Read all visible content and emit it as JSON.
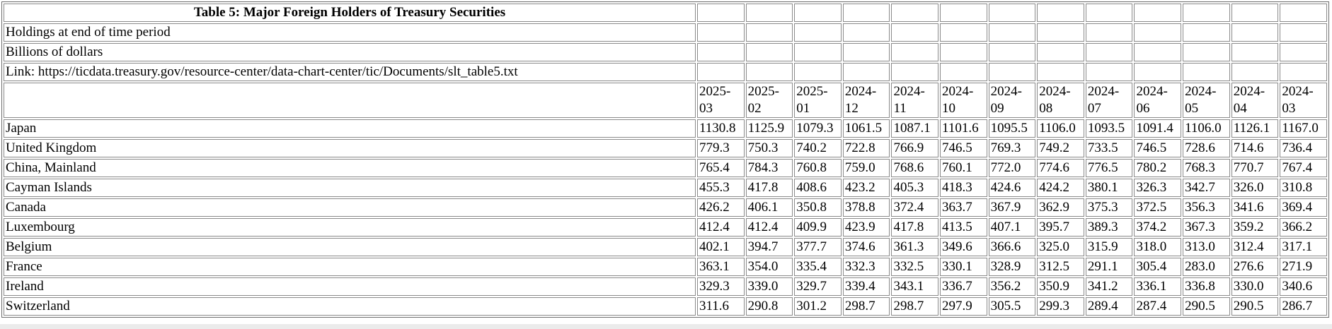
{
  "table": {
    "title": "Table 5: Major Foreign Holders of Treasury Securities",
    "holdings_note": "Holdings at end of time period",
    "units_note": "Billions of dollars",
    "link_text": "Link: https://ticdata.treasury.gov/resource-center/data-chart-center/tic/Documents/slt_table5.txt",
    "columns": [
      "2025-03",
      "2025-02",
      "2025-01",
      "2024-12",
      "2024-11",
      "2024-10",
      "2024-09",
      "2024-08",
      "2024-07",
      "2024-06",
      "2024-05",
      "2024-04",
      "2024-03"
    ],
    "rows": [
      {
        "country": "Japan",
        "values": [
          "1130.8",
          "1125.9",
          "1079.3",
          "1061.5",
          "1087.1",
          "1101.6",
          "1095.5",
          "1106.0",
          "1093.5",
          "1091.4",
          "1106.0",
          "1126.1",
          "1167.0"
        ]
      },
      {
        "country": "United Kingdom",
        "values": [
          "779.3",
          "750.3",
          "740.2",
          "722.8",
          "766.9",
          "746.5",
          "769.3",
          "749.2",
          "733.5",
          "746.5",
          "728.6",
          "714.6",
          "736.4"
        ]
      },
      {
        "country": "China, Mainland",
        "values": [
          "765.4",
          "784.3",
          "760.8",
          "759.0",
          "768.6",
          "760.1",
          "772.0",
          "774.6",
          "776.5",
          "780.2",
          "768.3",
          "770.7",
          "767.4"
        ]
      },
      {
        "country": "Cayman Islands",
        "values": [
          "455.3",
          "417.8",
          "408.6",
          "423.2",
          "405.3",
          "418.3",
          "424.6",
          "424.2",
          "380.1",
          "326.3",
          "342.7",
          "326.0",
          "310.8"
        ]
      },
      {
        "country": "Canada",
        "values": [
          "426.2",
          "406.1",
          "350.8",
          "378.8",
          "372.4",
          "363.7",
          "367.9",
          "362.9",
          "375.3",
          "372.5",
          "356.3",
          "341.6",
          "369.4"
        ]
      },
      {
        "country": "Luxembourg",
        "values": [
          "412.4",
          "412.4",
          "409.9",
          "423.9",
          "417.8",
          "413.5",
          "407.1",
          "395.7",
          "389.3",
          "374.2",
          "367.3",
          "359.2",
          "366.2"
        ]
      },
      {
        "country": "Belgium",
        "values": [
          "402.1",
          "394.7",
          "377.7",
          "374.6",
          "361.3",
          "349.6",
          "366.6",
          "325.0",
          "315.9",
          "318.0",
          "313.0",
          "312.4",
          "317.1"
        ]
      },
      {
        "country": "France",
        "values": [
          "363.1",
          "354.0",
          "335.4",
          "332.3",
          "332.5",
          "330.1",
          "328.9",
          "312.5",
          "291.1",
          "305.4",
          "283.0",
          "276.6",
          "271.9"
        ]
      },
      {
        "country": "Ireland",
        "values": [
          "329.3",
          "339.0",
          "329.7",
          "339.4",
          "343.1",
          "336.7",
          "356.2",
          "350.9",
          "341.2",
          "336.1",
          "336.8",
          "330.0",
          "340.6"
        ]
      },
      {
        "country": "Switzerland",
        "values": [
          "311.6",
          "290.8",
          "301.2",
          "298.7",
          "298.7",
          "297.9",
          "305.5",
          "299.3",
          "289.4",
          "287.4",
          "290.5",
          "290.5",
          "286.7"
        ]
      }
    ]
  }
}
